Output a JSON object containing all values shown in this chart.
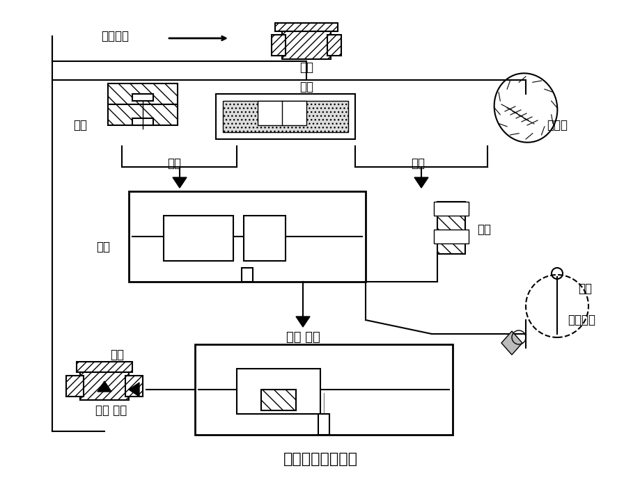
{
  "title": "砂型铸造工艺过程",
  "background_color": "#ffffff",
  "line_color": "#000000",
  "hatch_color": "#555555",
  "labels": {
    "jixie_jiagong": "机械加工",
    "ling_jian": "零件",
    "zhi_sha": "制砂",
    "mu_mo": "木模",
    "xin_he": "型芯盒",
    "zao_xing": "造型",
    "zao_xin": "造芯",
    "zhu_xing": "铸型",
    "xin_xin": "型芯",
    "he_xiang_jiao_zhu": "合箱 浇注",
    "rong_lu": "熔炉",
    "rong_hua_jinshu": "熔化金属",
    "zhu_jian": "铸件",
    "luo_sha_qing_li": "落砂 清理"
  },
  "figsize": [
    9.2,
    6.9
  ],
  "dpi": 100
}
